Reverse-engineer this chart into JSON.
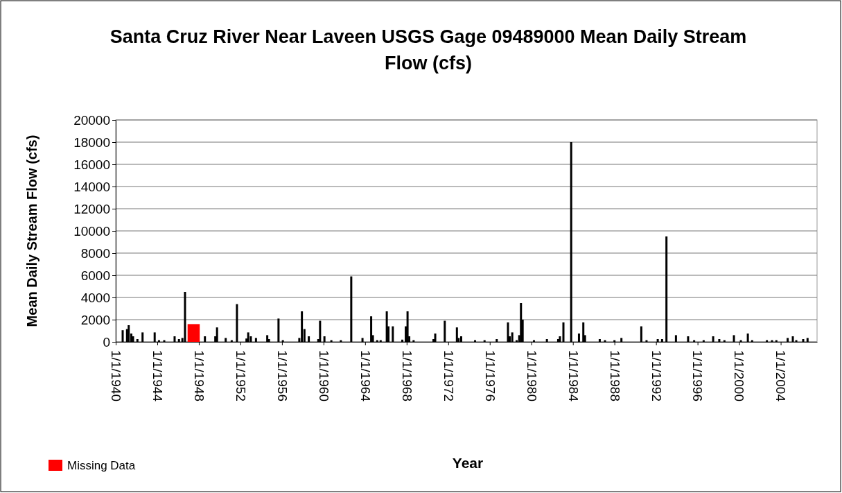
{
  "chart_data": {
    "type": "bar",
    "title": "Santa Cruz River Near Laveen USGS Gage 09489000 Mean Daily Stream Flow (cfs)",
    "xlabel": "Year",
    "ylabel": "Mean Daily Stream Flow (cfs)",
    "xlim": [
      "1940-01-01",
      "2007-07-01"
    ],
    "xticks": [
      {
        "value": "1940-01-01",
        "label": "1/1/1940"
      },
      {
        "value": "1944-01-01",
        "label": "1/1/1944"
      },
      {
        "value": "1948-01-01",
        "label": "1/1/1948"
      },
      {
        "value": "1952-01-01",
        "label": "1/1/1952"
      },
      {
        "value": "1956-01-01",
        "label": "1/1/1956"
      },
      {
        "value": "1960-01-01",
        "label": "1/1/1960"
      },
      {
        "value": "1964-01-01",
        "label": "1/1/1964"
      },
      {
        "value": "1968-01-01",
        "label": "1/1/1968"
      },
      {
        "value": "1972-01-01",
        "label": "1/1/1972"
      },
      {
        "value": "1976-01-01",
        "label": "1/1/1976"
      },
      {
        "value": "1980-01-01",
        "label": "1/1/1980"
      },
      {
        "value": "1984-01-01",
        "label": "1/1/1984"
      },
      {
        "value": "1988-01-01",
        "label": "1/1/1988"
      },
      {
        "value": "1992-01-01",
        "label": "1/1/1992"
      },
      {
        "value": "1996-01-01",
        "label": "1/1/1996"
      },
      {
        "value": "2000-01-01",
        "label": "1/1/2000"
      },
      {
        "value": "2004-01-01",
        "label": "1/1/2004"
      }
    ],
    "ylim": [
      0,
      20000
    ],
    "yticks": [
      0,
      2000,
      4000,
      6000,
      8000,
      10000,
      12000,
      14000,
      16000,
      18000,
      20000
    ],
    "grid": "y",
    "legend": "bottom left",
    "series": [
      {
        "color": "#000000",
        "x": [
          "1940-09",
          "1941-02",
          "1941-04",
          "1941-07",
          "1941-09",
          "1942-02",
          "1942-08",
          "1943-10",
          "1944-03",
          "1944-09",
          "1945-09",
          "1946-02",
          "1946-06",
          "1946-09",
          "1948-08",
          "1949-08",
          "1949-10",
          "1950-08",
          "1951-03",
          "1951-09",
          "1952-08",
          "1952-10",
          "1953-01",
          "1953-07",
          "1954-08",
          "1954-10",
          "1955-09",
          "1956-02",
          "1957-09",
          "1957-12",
          "1958-03",
          "1958-08",
          "1959-07",
          "1959-09",
          "1960-02",
          "1960-10",
          "1961-09",
          "1962-09",
          "1963-10",
          "1964-08",
          "1964-10",
          "1965-03",
          "1965-07",
          "1966-02",
          "1966-04",
          "1966-09",
          "1967-08",
          "1967-12",
          "1968-02",
          "1968-04",
          "1968-09",
          "1970-08",
          "1970-10",
          "1971-09",
          "1972-11",
          "1973-01",
          "1973-04",
          "1974-08",
          "1975-07",
          "1976-09",
          "1977-10",
          "1977-12",
          "1978-03",
          "1978-08",
          "1978-11",
          "1979-01",
          "1979-03",
          "1980-04",
          "1981-07",
          "1982-08",
          "1982-10",
          "1983-02",
          "1983-11",
          "1984-08",
          "1985-01",
          "1985-03",
          "1986-08",
          "1987-02",
          "1988-01",
          "1988-09",
          "1990-08",
          "1991-02",
          "1992-03",
          "1992-08",
          "1993-01",
          "1993-12",
          "1995-02",
          "1995-09",
          "1996-08",
          "1997-07",
          "1998-02",
          "1998-08",
          "1999-07",
          "2000-03",
          "2000-11",
          "2001-04",
          "2002-09",
          "2003-03",
          "2003-08",
          "2004-09",
          "2005-03",
          "2005-07",
          "2006-03",
          "2006-08"
        ],
        "values": [
          1050,
          1150,
          1500,
          750,
          500,
          250,
          850,
          850,
          150,
          150,
          500,
          250,
          350,
          4500,
          500,
          500,
          1300,
          350,
          150,
          3400,
          300,
          850,
          500,
          350,
          600,
          250,
          2100,
          150,
          350,
          2750,
          1150,
          500,
          250,
          1900,
          500,
          150,
          150,
          5900,
          350,
          2300,
          600,
          150,
          150,
          2750,
          1400,
          1400,
          200,
          1400,
          2750,
          500,
          150,
          250,
          750,
          1900,
          1300,
          350,
          500,
          150,
          150,
          250,
          1750,
          500,
          850,
          150,
          600,
          3500,
          2000,
          150,
          250,
          250,
          500,
          1750,
          18000,
          750,
          1750,
          600,
          250,
          150,
          150,
          350,
          1400,
          150,
          250,
          250,
          9500,
          600,
          500,
          150,
          150,
          500,
          250,
          150,
          600,
          150,
          750,
          150,
          150,
          150,
          150,
          350,
          500,
          150,
          250,
          350
        ]
      },
      {
        "name": "Missing Data",
        "type": "area",
        "color": "#ff0000",
        "x": [
          "1946-12",
          "1948-02"
        ],
        "values": [
          1600,
          1600
        ]
      }
    ]
  }
}
